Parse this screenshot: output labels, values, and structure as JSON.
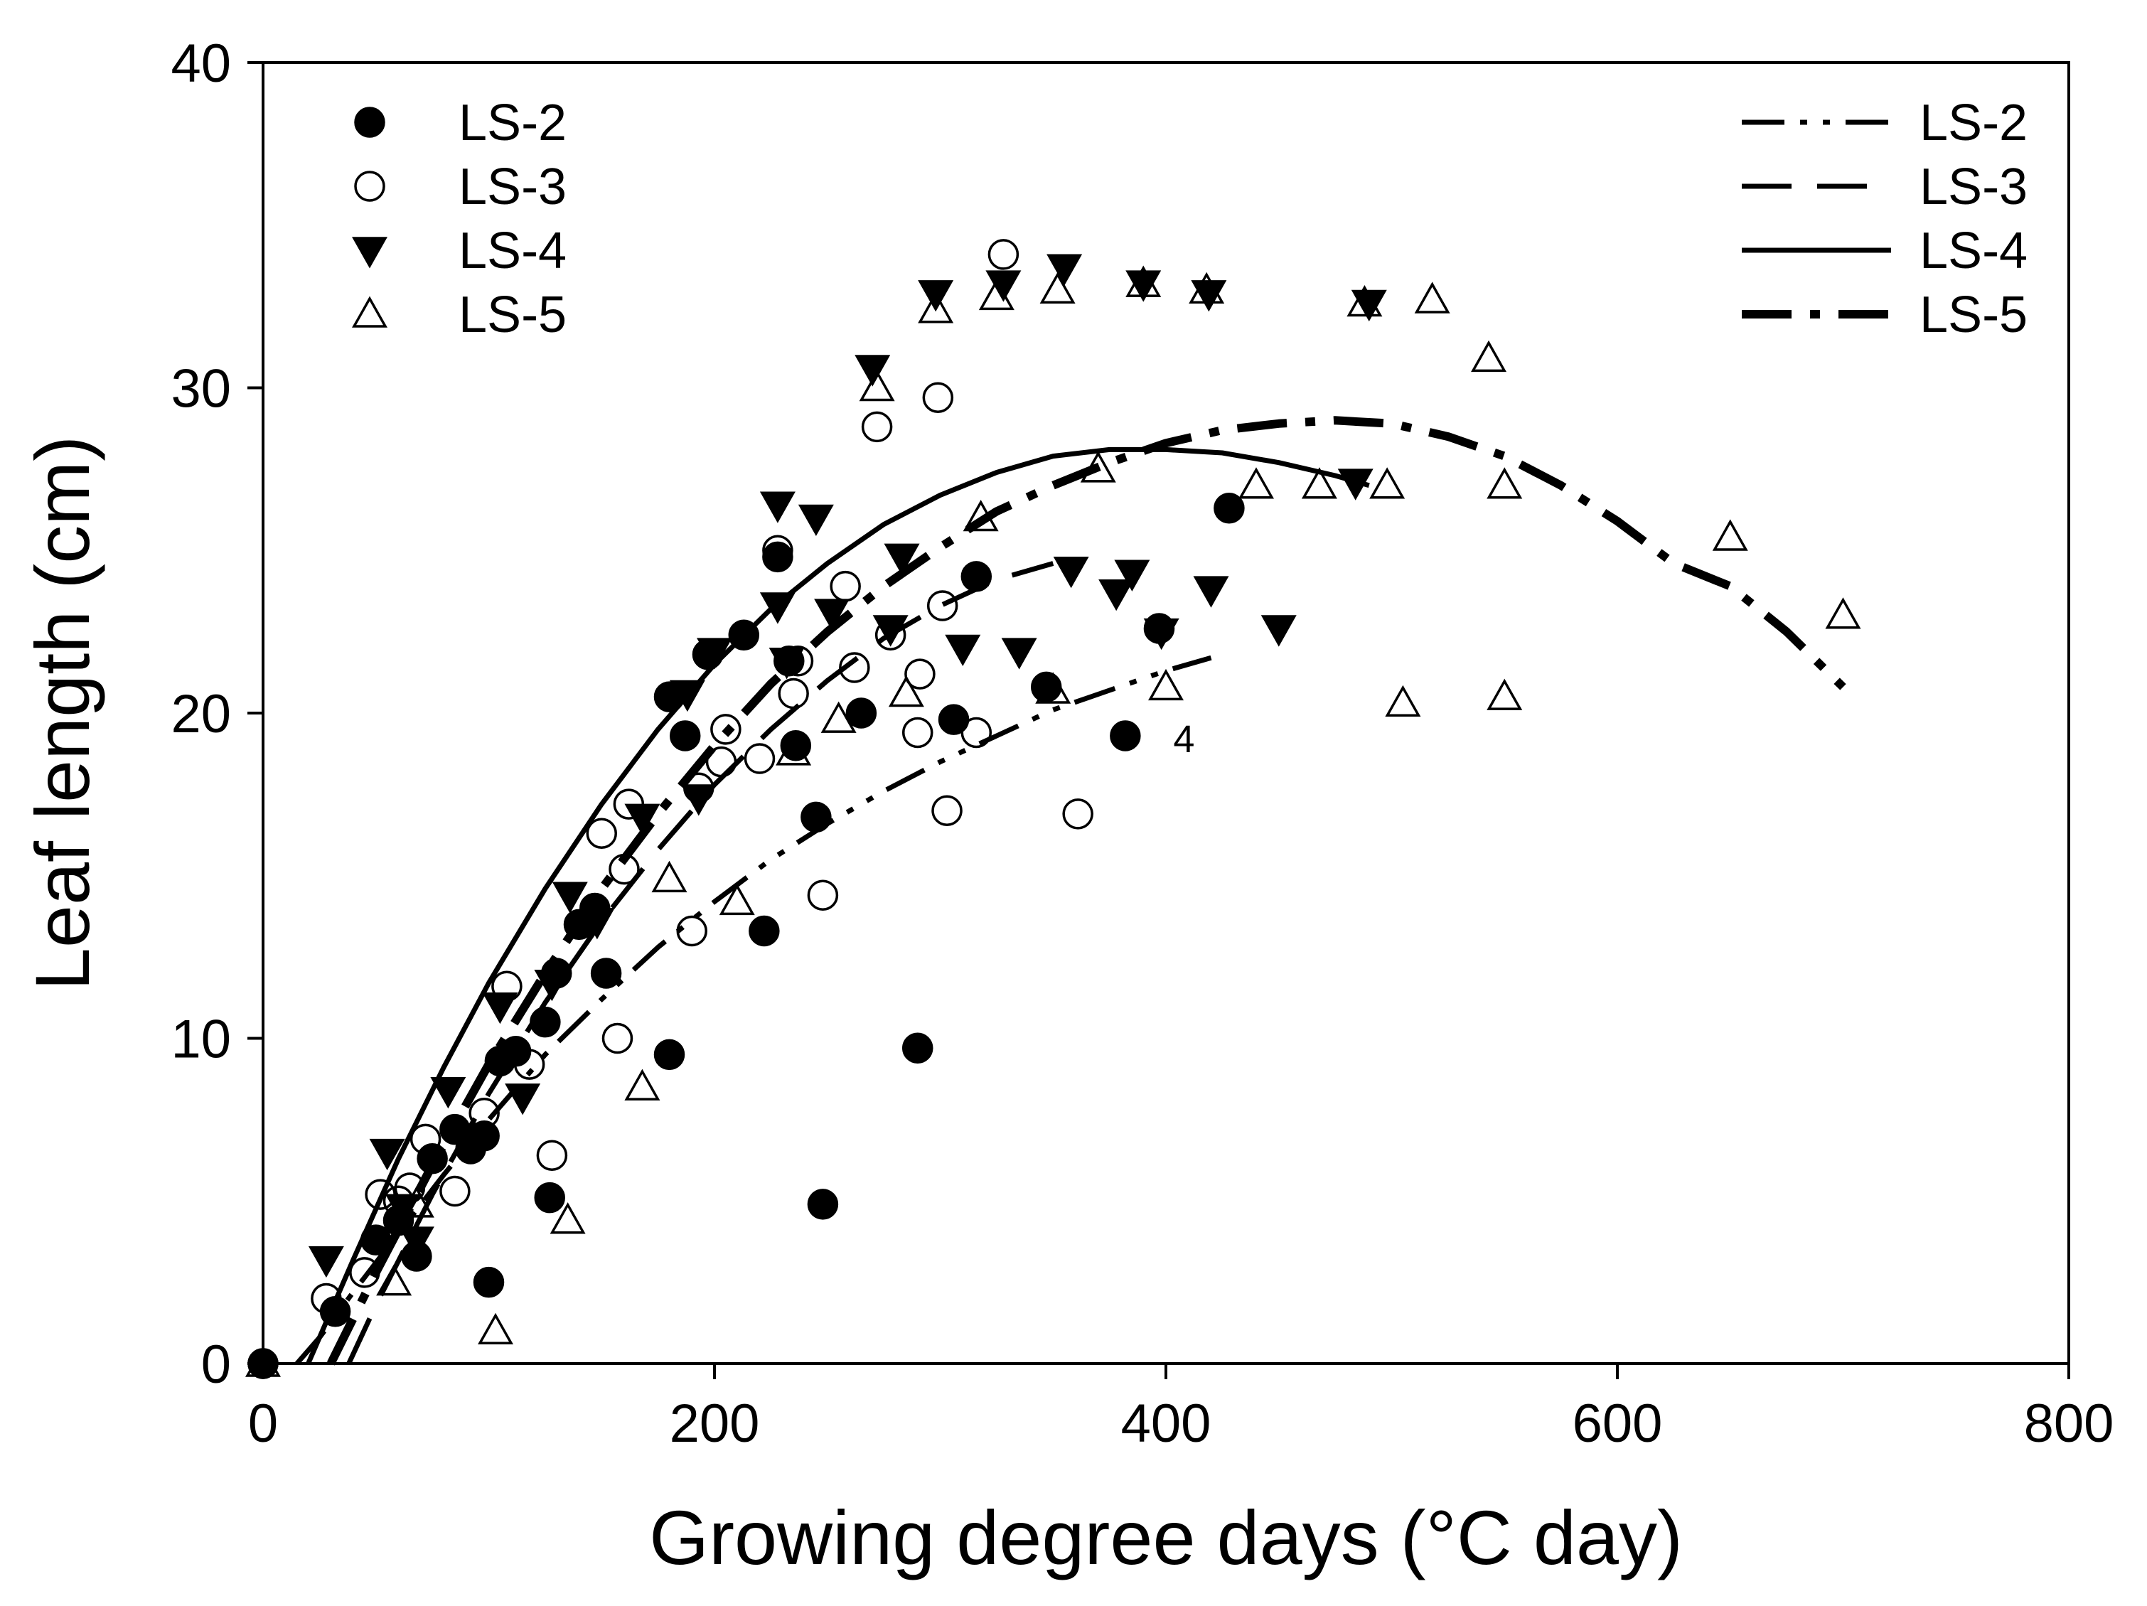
{
  "chart_data": {
    "type": "scatter",
    "title": "",
    "xlabel": "Growing degree days (°C day)",
    "ylabel": "Leaf length (cm)",
    "xlim": [
      0,
      800
    ],
    "ylim": [
      0,
      40
    ],
    "xticks": [
      0,
      200,
      400,
      600,
      800
    ],
    "yticks": [
      0,
      10,
      20,
      30,
      40
    ],
    "grid": false,
    "legend_points": {
      "placement": "top-left",
      "entries": [
        "LS-2",
        "LS-3",
        "LS-4",
        "LS-5"
      ]
    },
    "legend_lines": {
      "placement": "top-right",
      "entries": [
        "LS-2",
        "LS-3",
        "LS-4",
        "LS-5"
      ]
    },
    "annotations": [
      {
        "text": "4",
        "x": 408,
        "y": 18.8
      }
    ],
    "series": [
      {
        "name": "LS-2",
        "marker": "filled-circle",
        "points": [
          [
            0,
            0
          ],
          [
            32,
            1.6
          ],
          [
            50,
            3.8
          ],
          [
            60,
            4.4
          ],
          [
            68,
            3.3
          ],
          [
            75,
            6.3
          ],
          [
            85,
            7.2
          ],
          [
            92,
            6.6
          ],
          [
            98,
            7.0
          ],
          [
            100,
            2.5
          ],
          [
            105,
            9.3
          ],
          [
            112,
            9.6
          ],
          [
            125,
            10.5
          ],
          [
            127,
            5.1
          ],
          [
            130,
            12.0
          ],
          [
            140,
            13.5
          ],
          [
            147,
            14.0
          ],
          [
            152,
            12.0
          ],
          [
            180,
            20.5
          ],
          [
            180,
            9.5
          ],
          [
            187,
            19.3
          ],
          [
            197,
            21.8
          ],
          [
            213,
            22.4
          ],
          [
            222,
            13.3
          ],
          [
            228,
            24.8
          ],
          [
            233,
            21.6
          ],
          [
            236,
            19.0
          ],
          [
            248,
            4.9
          ],
          [
            245,
            16.8
          ],
          [
            265,
            20.0
          ],
          [
            290,
            9.7
          ],
          [
            306,
            19.8
          ],
          [
            316,
            24.2
          ],
          [
            347,
            20.8
          ],
          [
            382,
            19.3
          ],
          [
            397,
            22.6
          ],
          [
            428,
            26.3
          ]
        ],
        "curve": {
          "style": "dash-dot-dot",
          "x": [
            15,
            25,
            40,
            60,
            80,
            100,
            125,
            150,
            175,
            200,
            225,
            250,
            275,
            300,
            325,
            350,
            375,
            400,
            420
          ],
          "y": [
            0.0,
            0.8,
            2.2,
            4.0,
            5.8,
            7.5,
            9.5,
            11.2,
            12.8,
            14.2,
            15.5,
            16.6,
            17.6,
            18.5,
            19.3,
            20.1,
            20.7,
            21.3,
            21.7
          ]
        }
      },
      {
        "name": "LS-3",
        "marker": "open-circle",
        "points": [
          [
            0,
            0
          ],
          [
            28,
            2.0
          ],
          [
            45,
            2.8
          ],
          [
            52,
            5.2
          ],
          [
            60,
            5.0
          ],
          [
            65,
            5.4
          ],
          [
            72,
            6.9
          ],
          [
            85,
            5.3
          ],
          [
            98,
            7.7
          ],
          [
            108,
            11.6
          ],
          [
            118,
            9.2
          ],
          [
            128,
            6.4
          ],
          [
            150,
            16.3
          ],
          [
            157,
            10.0
          ],
          [
            160,
            15.2
          ],
          [
            162,
            17.2
          ],
          [
            190,
            13.3
          ],
          [
            193,
            17.7
          ],
          [
            203,
            18.5
          ],
          [
            205,
            19.5
          ],
          [
            220,
            18.6
          ],
          [
            228,
            25.0
          ],
          [
            235,
            20.6
          ],
          [
            237,
            21.6
          ],
          [
            248,
            14.4
          ],
          [
            258,
            23.9
          ],
          [
            262,
            21.4
          ],
          [
            272,
            28.8
          ],
          [
            278,
            22.4
          ],
          [
            290,
            19.4
          ],
          [
            291,
            21.2
          ],
          [
            299,
            29.7
          ],
          [
            301,
            23.3
          ],
          [
            303,
            17.0
          ],
          [
            316,
            19.4
          ],
          [
            328,
            34.1
          ],
          [
            361,
            16.9
          ]
        ],
        "curve": {
          "style": "long-dash",
          "x": [
            38,
            50,
            75,
            100,
            125,
            150,
            175,
            200,
            225,
            250,
            275,
            300,
            325,
            350
          ],
          "y": [
            0.0,
            1.8,
            5.2,
            8.3,
            11.1,
            13.6,
            15.8,
            17.8,
            19.5,
            21.0,
            22.3,
            23.3,
            24.1,
            24.6
          ]
        }
      },
      {
        "name": "LS-4",
        "marker": "filled-down-triangle",
        "points": [
          [
            28,
            3.2
          ],
          [
            55,
            6.5
          ],
          [
            62,
            4.8
          ],
          [
            68,
            3.8
          ],
          [
            82,
            8.4
          ],
          [
            105,
            11.0
          ],
          [
            115,
            8.2
          ],
          [
            128,
            11.7
          ],
          [
            136,
            14.4
          ],
          [
            148,
            13.6
          ],
          [
            168,
            16.8
          ],
          [
            188,
            20.6
          ],
          [
            193,
            17.4
          ],
          [
            200,
            21.9
          ],
          [
            228,
            26.4
          ],
          [
            228,
            23.3
          ],
          [
            232,
            21.6
          ],
          [
            245,
            26.0
          ],
          [
            252,
            23.1
          ],
          [
            270,
            30.6
          ],
          [
            278,
            22.6
          ],
          [
            283,
            24.8
          ],
          [
            298,
            32.9
          ],
          [
            310,
            22.0
          ],
          [
            328,
            33.2
          ],
          [
            335,
            21.9
          ],
          [
            355,
            33.7
          ],
          [
            358,
            24.4
          ],
          [
            378,
            23.7
          ],
          [
            385,
            24.3
          ],
          [
            390,
            33.2
          ],
          [
            398,
            22.5
          ],
          [
            419,
            32.9
          ],
          [
            420,
            23.8
          ],
          [
            450,
            22.6
          ],
          [
            484,
            27.1
          ],
          [
            490,
            32.6
          ]
        ],
        "curve": {
          "style": "solid",
          "x": [
            20,
            40,
            60,
            80,
            100,
            125,
            150,
            175,
            200,
            225,
            250,
            275,
            300,
            325,
            350,
            375,
            400,
            425,
            450,
            475,
            490
          ],
          "y": [
            0.0,
            3.2,
            6.3,
            9.1,
            11.7,
            14.6,
            17.2,
            19.5,
            21.5,
            23.2,
            24.6,
            25.8,
            26.7,
            27.4,
            27.9,
            28.1,
            28.1,
            28.0,
            27.7,
            27.3,
            27.0
          ]
        }
      },
      {
        "name": "LS-5",
        "marker": "open-up-triangle",
        "points": [
          [
            0,
            0
          ],
          [
            58,
            2.5
          ],
          [
            68,
            4.9
          ],
          [
            103,
            1.0
          ],
          [
            135,
            4.4
          ],
          [
            168,
            8.5
          ],
          [
            180,
            14.9
          ],
          [
            210,
            14.2
          ],
          [
            235,
            18.8
          ],
          [
            255,
            19.8
          ],
          [
            272,
            30.0
          ],
          [
            285,
            20.6
          ],
          [
            298,
            32.4
          ],
          [
            318,
            26.0
          ],
          [
            325,
            32.8
          ],
          [
            350,
            20.7
          ],
          [
            352,
            33.0
          ],
          [
            370,
            27.5
          ],
          [
            390,
            33.2
          ],
          [
            400,
            20.8
          ],
          [
            418,
            33.0
          ],
          [
            440,
            27.0
          ],
          [
            468,
            27.0
          ],
          [
            488,
            32.6
          ],
          [
            498,
            27.0
          ],
          [
            505,
            20.3
          ],
          [
            518,
            32.7
          ],
          [
            543,
            30.9
          ],
          [
            550,
            20.5
          ],
          [
            550,
            27.0
          ],
          [
            650,
            25.4
          ],
          [
            700,
            23.0
          ]
        ],
        "curve": {
          "style": "heavy-dash-dot",
          "x": [
            30,
            50,
            75,
            100,
            125,
            150,
            175,
            200,
            225,
            250,
            275,
            300,
            325,
            350,
            375,
            400,
            425,
            450,
            475,
            500,
            525,
            550,
            575,
            600,
            625,
            650,
            675,
            700
          ],
          "y": [
            0.0,
            2.8,
            6.1,
            9.2,
            12.0,
            14.6,
            16.9,
            19.0,
            20.9,
            22.5,
            23.9,
            25.1,
            26.2,
            27.0,
            27.7,
            28.3,
            28.7,
            28.9,
            29.0,
            28.9,
            28.5,
            27.9,
            27.0,
            25.9,
            24.6,
            23.9,
            22.5,
            20.8
          ]
        }
      }
    ]
  }
}
